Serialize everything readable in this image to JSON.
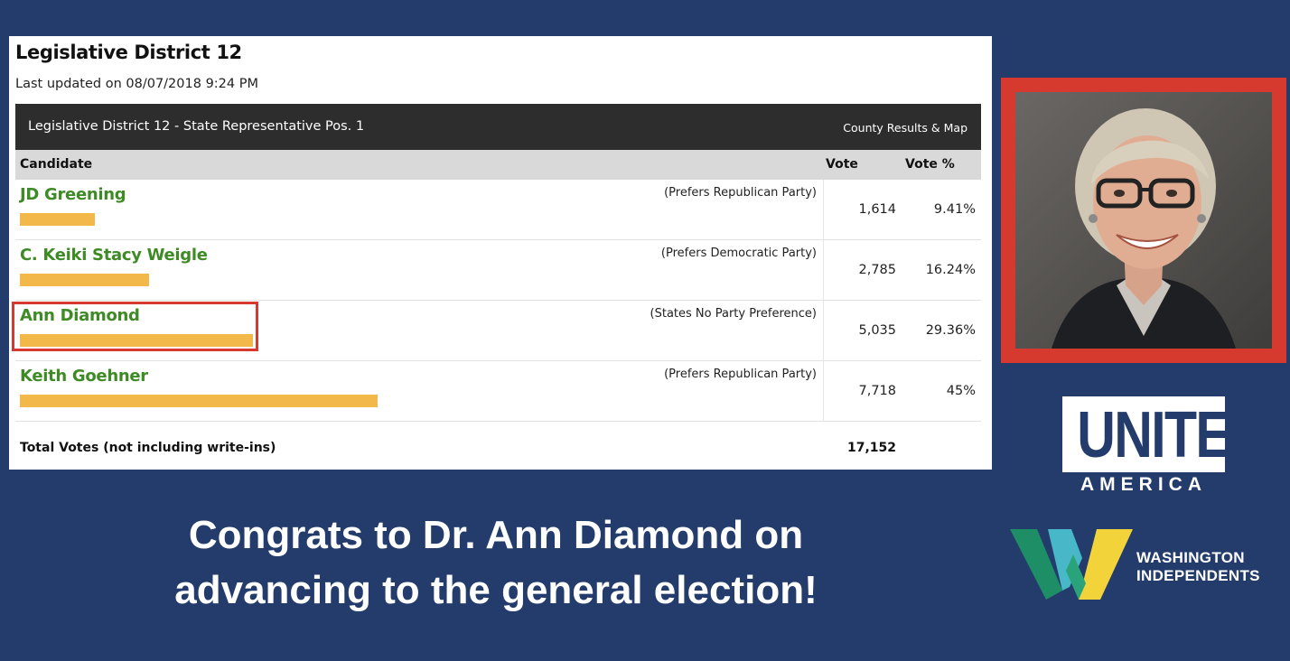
{
  "results": {
    "title": "Legislative District 12",
    "last_updated": "Last updated on 08/07/2018 9:24 PM",
    "race_title": "Legislative District 12 - State Representative Pos. 1",
    "county_link": "County Results & Map",
    "columns": {
      "candidate": "Candidate",
      "vote": "Vote",
      "vote_pct": "Vote %"
    },
    "candidates": [
      {
        "name": "JD Greening",
        "party": "(Prefers Republican Party)",
        "votes": "1,614",
        "pct": "9.41%",
        "share": 0.0941
      },
      {
        "name": "C. Keiki Stacy Weigle",
        "party": "(Prefers Democratic Party)",
        "votes": "2,785",
        "pct": "16.24%",
        "share": 0.1624
      },
      {
        "name": "Ann Diamond",
        "party": "(States No Party Preference)",
        "votes": "5,035",
        "pct": "29.36%",
        "share": 0.2936,
        "highlighted": true
      },
      {
        "name": "Keith Goehner",
        "party": "(Prefers Republican Party)",
        "votes": "7,718",
        "pct": "45%",
        "share": 0.45
      }
    ],
    "total_label": "Total Votes (not including write-ins)",
    "total_value": "17,152"
  },
  "caption": {
    "line1": "Congrats to Dr. Ann Diamond on",
    "line2": "advancing to the general election!"
  },
  "logos": {
    "unite_word": "UNITE",
    "america_word": "AMERICA",
    "wa_line1": "WASHINGTON",
    "wa_line2": "INDEPENDENTS"
  },
  "colors": {
    "background": "#243c6c",
    "candidate_name": "#3e8b26",
    "vote_bar": "#f3b84a",
    "highlight": "#d7382f",
    "race_header": "#2d2d2d",
    "column_header": "#d9d9d9"
  }
}
